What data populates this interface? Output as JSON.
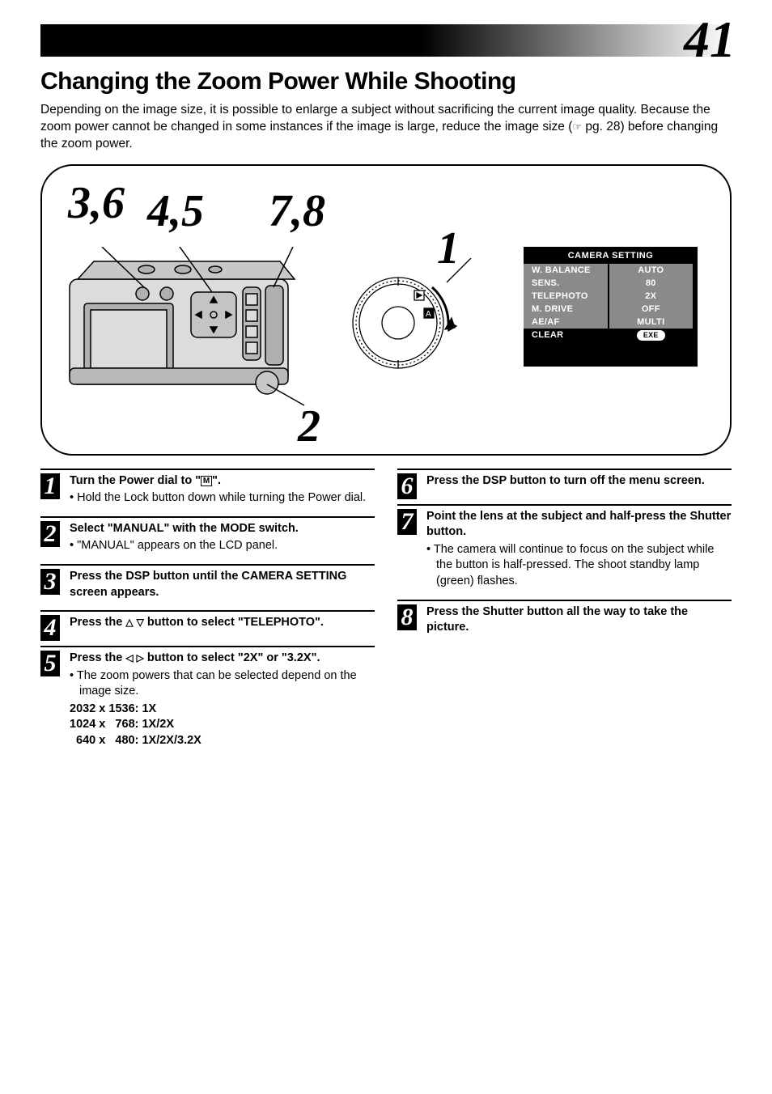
{
  "page_number": "41",
  "title": "Changing the Zoom Power While Shooting",
  "intro_a": "Depending on the image size, it is possible to enlarge a subject without sacrificing the current image quality. Because the zoom power cannot be changed in some instances if the image is large, reduce the image size (",
  "intro_ref": "☞",
  "intro_b": " pg. 28) before changing the zoom power.",
  "diagram": {
    "labels": {
      "l36": "3,6",
      "l45": "4,5",
      "l78": "7,8",
      "l1": "1",
      "l2": "2"
    }
  },
  "camera_setting": {
    "title": "CAMERA SETTING",
    "rows": [
      {
        "k": "W. BALANCE",
        "v": "AUTO",
        "hl": true
      },
      {
        "k": "SENS.",
        "v": "80",
        "hl": true
      },
      {
        "k": "TELEPHOTO",
        "v": "2X",
        "hl": true
      },
      {
        "k": "M. DRIVE",
        "v": "OFF",
        "hl": true
      },
      {
        "k": "AE/AF",
        "v": "MULTI",
        "hl": true
      },
      {
        "k": "CLEAR",
        "v": "EXE",
        "hl": false,
        "badge": true
      }
    ]
  },
  "m_glyph": "M",
  "steps_left": [
    {
      "n": "1",
      "head_a": "Turn the Power dial to \"",
      "head_b": "\".",
      "bullets": [
        "Hold the Lock button down while turning the Power dial."
      ]
    },
    {
      "n": "2",
      "head": "Select \"MANUAL\" with the MODE switch.",
      "bullets": [
        "\"MANUAL\" appears on the LCD panel."
      ]
    },
    {
      "n": "3",
      "head": "Press the DSP button until the CAMERA SETTING screen appears."
    },
    {
      "n": "4",
      "head_a": "Press the ",
      "head_b": " button to select \"TELEPHOTO\".",
      "tri": "ud"
    },
    {
      "n": "5",
      "head_a": "Press the ",
      "head_b": " button to select \"2X\" or \"3.2X\".",
      "tri": "lr",
      "bullets": [
        "The zoom powers that can be selected depend on the image size."
      ],
      "res": [
        {
          "a": "2032 x 1536:",
          "b": "1X"
        },
        {
          "a": "1024 x   768:",
          "b": "1X/2X"
        },
        {
          "a": "  640 x   480:",
          "b": "1X/2X/3.2X"
        }
      ]
    }
  ],
  "steps_right": [
    {
      "n": "6",
      "head": "Press the DSP button to turn off the menu screen."
    },
    {
      "n": "7",
      "head": "Point the lens at the subject and half-press the Shutter button.",
      "bullets": [
        "The camera will continue to focus on the subject while the button is half-pressed. The shoot standby lamp (green) flashes."
      ]
    },
    {
      "n": "8",
      "head": "Press the Shutter button all the way to take the picture."
    }
  ],
  "style": {
    "colors": {
      "black": "#000000",
      "white": "#ffffff",
      "row_hl": "#888a8c"
    },
    "fonts": {
      "serif_italic": "Times New Roman",
      "sans": "Helvetica"
    }
  }
}
